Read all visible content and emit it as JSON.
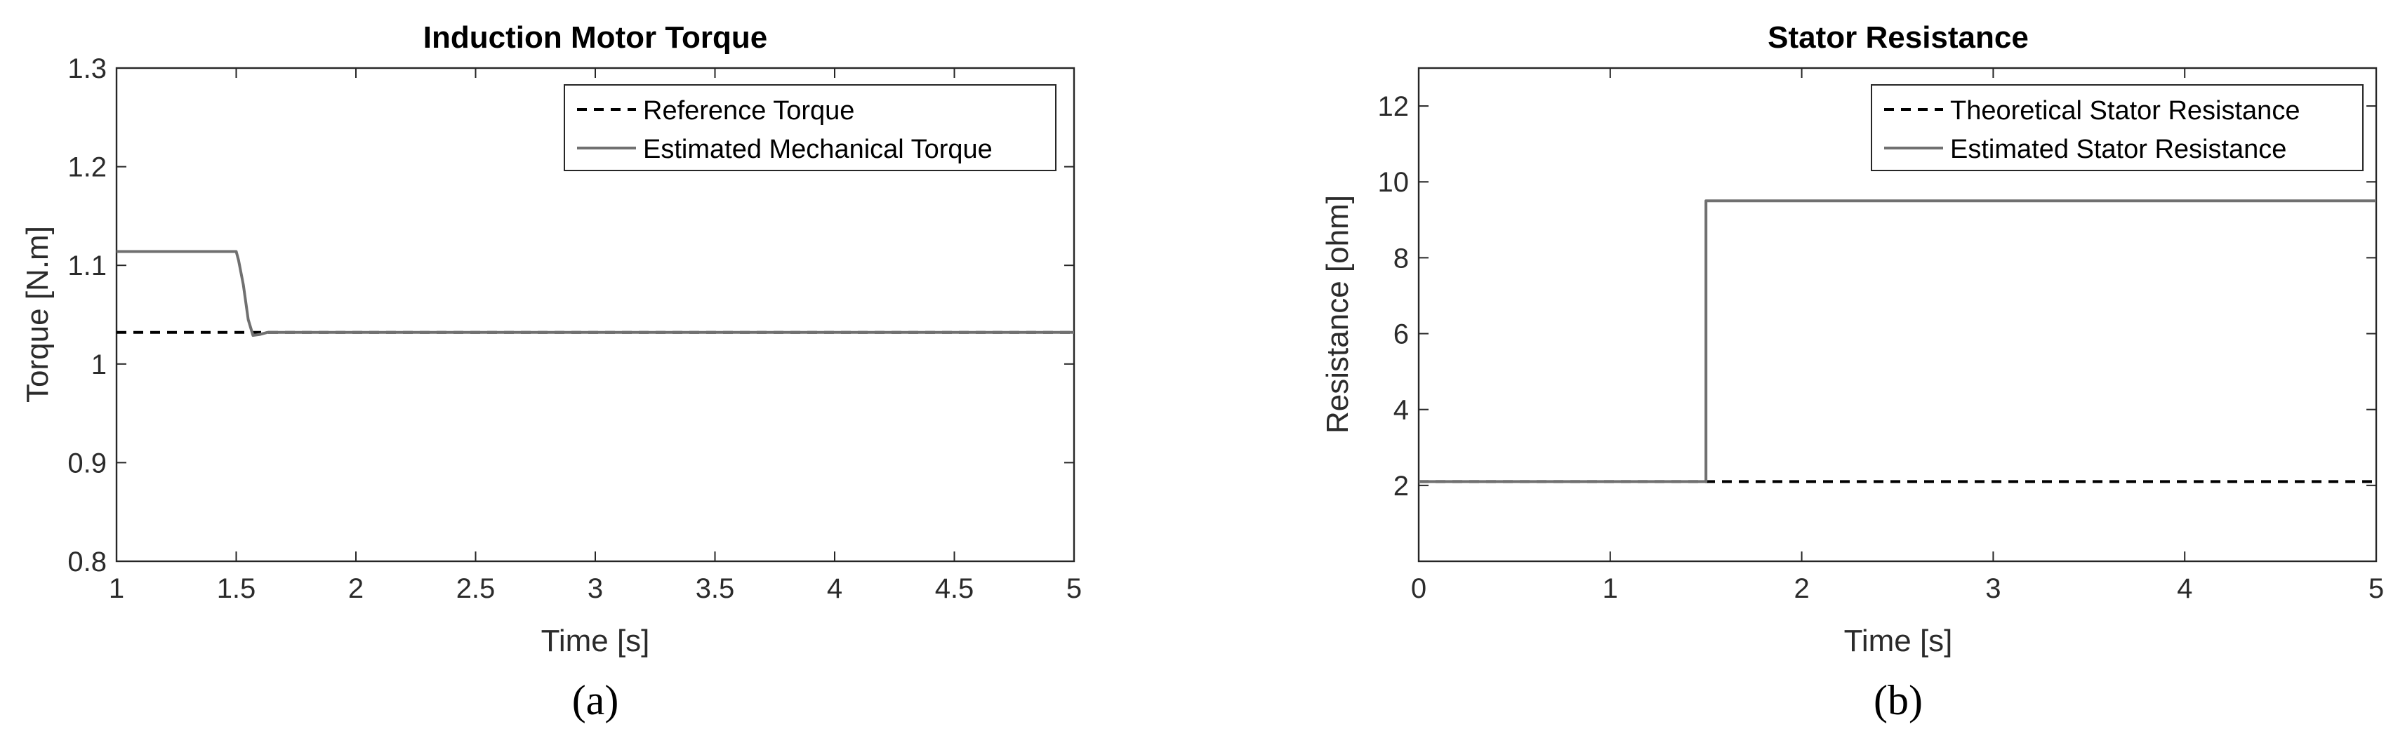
{
  "chart_data": [
    {
      "type": "line",
      "title": "Induction Motor Torque",
      "xlabel": "Time [s]",
      "ylabel": "Torque [N.m]",
      "xlim": [
        1,
        5
      ],
      "ylim": [
        0.8,
        1.3
      ],
      "xticks": [
        1,
        1.5,
        2,
        2.5,
        3,
        3.5,
        4,
        4.5,
        5
      ],
      "yticks": [
        0.8,
        0.9,
        1,
        1.1,
        1.2,
        1.3
      ],
      "xtick_labels": [
        "1",
        "1.5",
        "2",
        "2.5",
        "3",
        "3.5",
        "4",
        "4.5",
        "5"
      ],
      "ytick_labels": [
        "0.8",
        "0.9",
        "1",
        "1.1",
        "1.2",
        "1.3"
      ],
      "grid": false,
      "legend_position": "top-right",
      "series": [
        {
          "name": "Reference Torque",
          "style": "dashed",
          "color": "#000000",
          "x": [
            1,
            5
          ],
          "y": [
            1.032,
            1.032
          ]
        },
        {
          "name": "Estimated Mechanical Torque",
          "style": "solid",
          "color": "#707070",
          "x": [
            1,
            1.5,
            1.51,
            1.53,
            1.55,
            1.57,
            1.6,
            1.63,
            1.66,
            5
          ],
          "y": [
            1.114,
            1.114,
            1.105,
            1.08,
            1.045,
            1.029,
            1.03,
            1.032,
            1.032,
            1.032
          ]
        }
      ],
      "panel": "(a)"
    },
    {
      "type": "line",
      "title": "Stator Resistance",
      "xlabel": "Time [s]",
      "ylabel": "Resistance [ohm]",
      "xlim": [
        0,
        5
      ],
      "ylim": [
        0,
        13
      ],
      "xticks": [
        0,
        1,
        2,
        3,
        4,
        5
      ],
      "yticks": [
        2,
        4,
        6,
        8,
        10,
        12
      ],
      "xtick_labels": [
        "0",
        "1",
        "2",
        "3",
        "4",
        "5"
      ],
      "ytick_labels": [
        "2",
        "4",
        "6",
        "8",
        "10",
        "12"
      ],
      "grid": false,
      "legend_position": "top-right",
      "series": [
        {
          "name": "Theoretical Stator Resistance",
          "style": "dashed",
          "color": "#000000",
          "x": [
            0,
            5
          ],
          "y": [
            2.1,
            2.1
          ]
        },
        {
          "name": "Estimated Stator Resistance",
          "style": "solid",
          "color": "#707070",
          "x": [
            0,
            1.5,
            1.5,
            5
          ],
          "y": [
            2.1,
            2.1,
            9.5,
            9.5
          ]
        }
      ],
      "panel": "(b)"
    }
  ]
}
